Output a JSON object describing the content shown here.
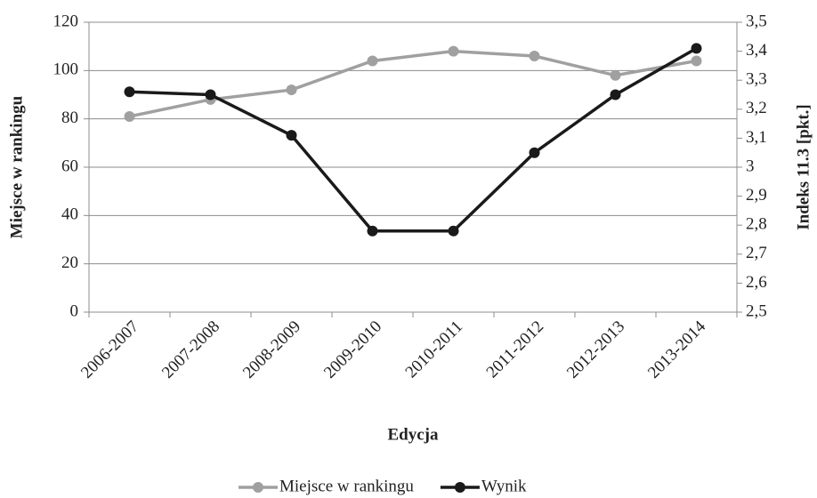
{
  "chart_data": {
    "type": "line",
    "categories": [
      "2006-2007",
      "2007-2008",
      "2008-2009",
      "2009-2010",
      "2010-2011",
      "2011-2012",
      "2012-2013",
      "2013-2014"
    ],
    "series": [
      {
        "name": "Miejsce w rankingu",
        "color": "#a0a0a0",
        "values": [
          81,
          88,
          92,
          104,
          108,
          106,
          98,
          104
        ]
      },
      {
        "name": "Wynik",
        "color": "#1a1a1a",
        "axis": "y2",
        "values": [
          3.26,
          3.25,
          3.11,
          2.78,
          2.78,
          3.05,
          3.25,
          3.41
        ]
      }
    ],
    "x_label": "Edycja",
    "y_label": "Miejsce w rankingu",
    "y2_label": "Indeks 11.3 [pkt.]",
    "ylim": [
      0,
      120
    ],
    "yticks": [
      0,
      20,
      40,
      60,
      80,
      100,
      120
    ],
    "y2lim": [
      2.5,
      3.5
    ],
    "y2ticks": [
      {
        "value": 2.5,
        "label": "2,5"
      },
      {
        "value": 2.6,
        "label": "2,6"
      },
      {
        "value": 2.7,
        "label": "2,7"
      },
      {
        "value": 2.8,
        "label": "2,8"
      },
      {
        "value": 2.9,
        "label": "2,9"
      },
      3,
      {
        "value": 3.1,
        "label": "3,1"
      },
      {
        "value": 3.2,
        "label": "3,2"
      },
      {
        "value": 3.3,
        "label": "3,3"
      },
      {
        "value": 3.4,
        "label": "3,4"
      },
      {
        "value": 3.5,
        "label": "3,5"
      }
    ],
    "grid": true,
    "legend": "bottom"
  }
}
